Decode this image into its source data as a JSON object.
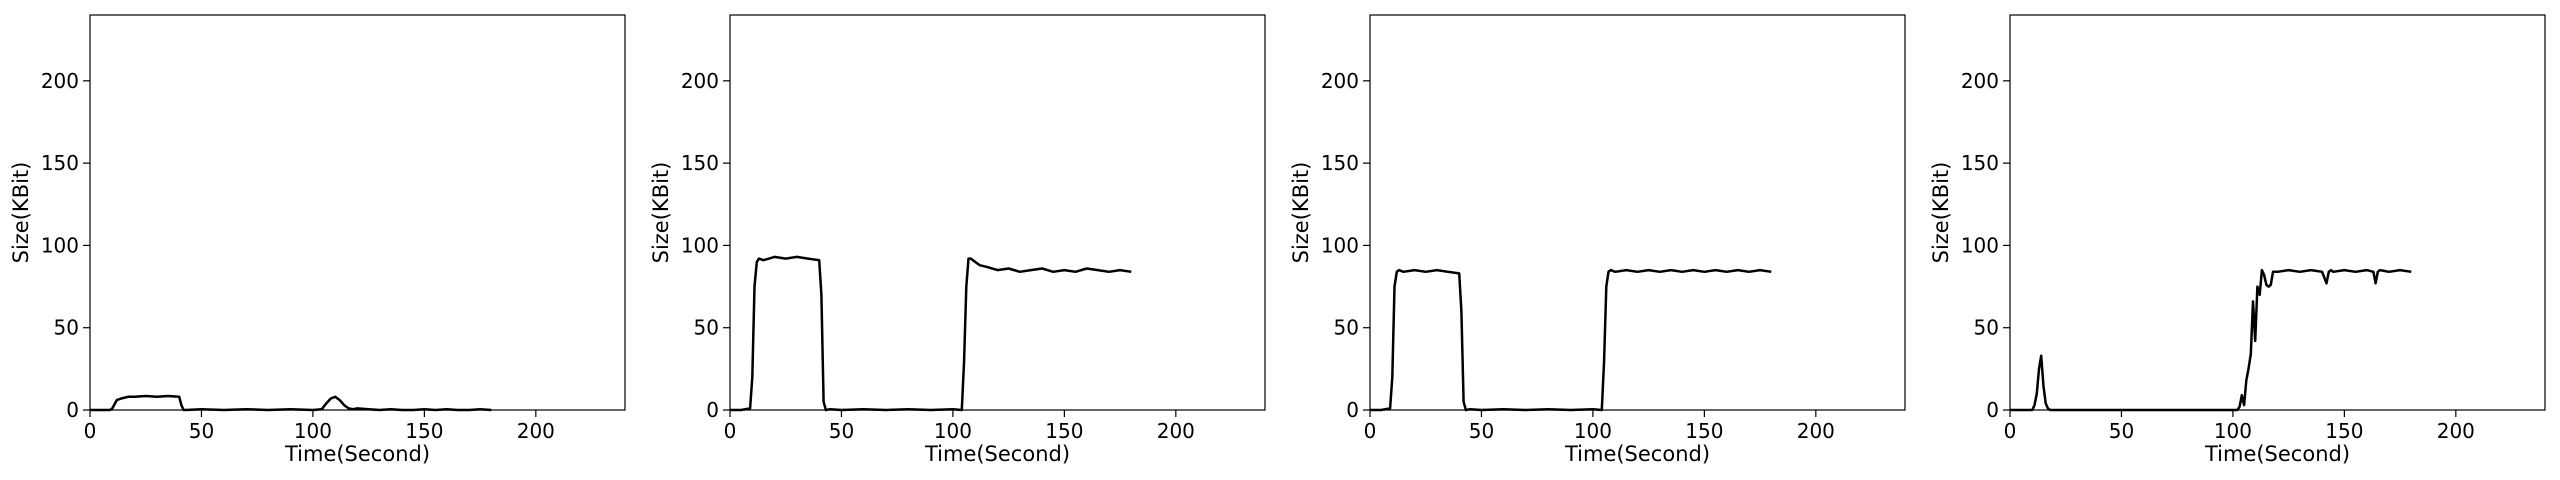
{
  "chart_data": [
    {
      "type": "line",
      "xlabel": "Time(Second)",
      "ylabel": "Size(KBit)",
      "xlim": [
        0,
        240
      ],
      "ylim": [
        0,
        240
      ],
      "xticks": [
        0,
        50,
        100,
        150,
        200
      ],
      "yticks": [
        0,
        50,
        100,
        150,
        200
      ],
      "color": "#000000",
      "series": [
        {
          "x": [
            0,
            9,
            10,
            12,
            14,
            17,
            20,
            25,
            30,
            35,
            40,
            41,
            42,
            43,
            50,
            60,
            70,
            80,
            90,
            100,
            104,
            106,
            108,
            110,
            112,
            114,
            116,
            118,
            120,
            125,
            130,
            135,
            140,
            145,
            150,
            155,
            160,
            165,
            170,
            175,
            180
          ],
          "y": [
            0,
            0,
            1,
            6,
            7,
            8,
            8,
            8.5,
            8,
            8.5,
            8,
            3,
            0,
            0,
            0.5,
            0,
            0.5,
            0,
            0.5,
            0,
            0.5,
            4,
            7,
            8,
            6,
            3,
            1,
            0.5,
            1,
            0.5,
            0,
            0.5,
            0,
            0,
            0.5,
            0,
            0.5,
            0,
            0,
            0.5,
            0
          ]
        }
      ]
    },
    {
      "type": "line",
      "xlabel": "Time(Second)",
      "ylabel": "Size(KBit)",
      "xlim": [
        0,
        240
      ],
      "ylim": [
        0,
        240
      ],
      "xticks": [
        0,
        50,
        100,
        150,
        200
      ],
      "yticks": [
        0,
        50,
        100,
        150,
        200
      ],
      "color": "#000000",
      "series": [
        {
          "x": [
            0,
            5,
            9,
            10,
            11,
            12,
            13,
            15,
            20,
            25,
            30,
            35,
            40,
            41,
            42,
            43,
            45,
            50,
            60,
            70,
            80,
            90,
            100,
            104,
            105,
            106,
            107,
            108,
            110,
            112,
            115,
            120,
            125,
            130,
            135,
            140,
            145,
            150,
            155,
            160,
            165,
            170,
            175,
            180
          ],
          "y": [
            0,
            0,
            1,
            20,
            75,
            90,
            92,
            91,
            93,
            92,
            93,
            92,
            91,
            70,
            5,
            0,
            0.5,
            0,
            0.5,
            0,
            0.5,
            0,
            0.5,
            0,
            30,
            75,
            92,
            92,
            90,
            88,
            87,
            85,
            86,
            84,
            85,
            86,
            84,
            85,
            84,
            86,
            85,
            84,
            85,
            84
          ]
        }
      ]
    },
    {
      "type": "line",
      "xlabel": "Time(Second)",
      "ylabel": "Size(KBit)",
      "xlim": [
        0,
        240
      ],
      "ylim": [
        0,
        240
      ],
      "xticks": [
        0,
        50,
        100,
        150,
        200
      ],
      "yticks": [
        0,
        50,
        100,
        150,
        200
      ],
      "color": "#000000",
      "series": [
        {
          "x": [
            0,
            5,
            9,
            10,
            11,
            12,
            13,
            15,
            20,
            25,
            30,
            35,
            40,
            41,
            42,
            43,
            45,
            50,
            60,
            70,
            80,
            90,
            100,
            104,
            105,
            106,
            107,
            108,
            110,
            115,
            120,
            125,
            130,
            135,
            140,
            145,
            150,
            155,
            160,
            165,
            170,
            175,
            180
          ],
          "y": [
            0,
            0,
            1,
            20,
            75,
            84,
            85,
            84,
            85,
            84,
            85,
            84,
            83,
            60,
            5,
            0,
            0.5,
            0,
            0.5,
            0,
            0.5,
            0,
            0.5,
            0,
            30,
            75,
            84,
            85,
            84,
            85,
            84,
            85,
            84,
            85,
            84,
            85,
            84,
            85,
            84,
            85,
            84,
            85,
            84
          ]
        }
      ]
    },
    {
      "type": "line",
      "xlabel": "Time(Second)",
      "ylabel": "Size(KBit)",
      "xlim": [
        0,
        240
      ],
      "ylim": [
        0,
        240
      ],
      "xticks": [
        0,
        50,
        100,
        150,
        200
      ],
      "yticks": [
        0,
        50,
        100,
        150,
        200
      ],
      "color": "#000000",
      "series": [
        {
          "x": [
            0,
            10,
            11,
            12,
            13,
            14,
            15,
            16,
            17,
            18,
            20,
            30,
            50,
            70,
            90,
            100,
            102,
            103,
            104,
            105,
            106,
            107,
            108,
            109,
            110,
            111,
            112,
            113,
            114,
            115,
            116,
            117,
            118,
            120,
            125,
            130,
            135,
            140,
            142,
            143,
            144,
            145,
            150,
            155,
            160,
            163,
            164,
            165,
            166,
            170,
            175,
            180
          ],
          "y": [
            0,
            0,
            3,
            10,
            25,
            33,
            15,
            4,
            1,
            0,
            0,
            0,
            0,
            0,
            0,
            0,
            0,
            2,
            9,
            3,
            18,
            25,
            34,
            66,
            42,
            75,
            70,
            85,
            82,
            76,
            75,
            76,
            84,
            84,
            85,
            84,
            85,
            84,
            77,
            84,
            85,
            84,
            85,
            84,
            85,
            84,
            77,
            84,
            85,
            84,
            85,
            84
          ]
        }
      ]
    }
  ]
}
